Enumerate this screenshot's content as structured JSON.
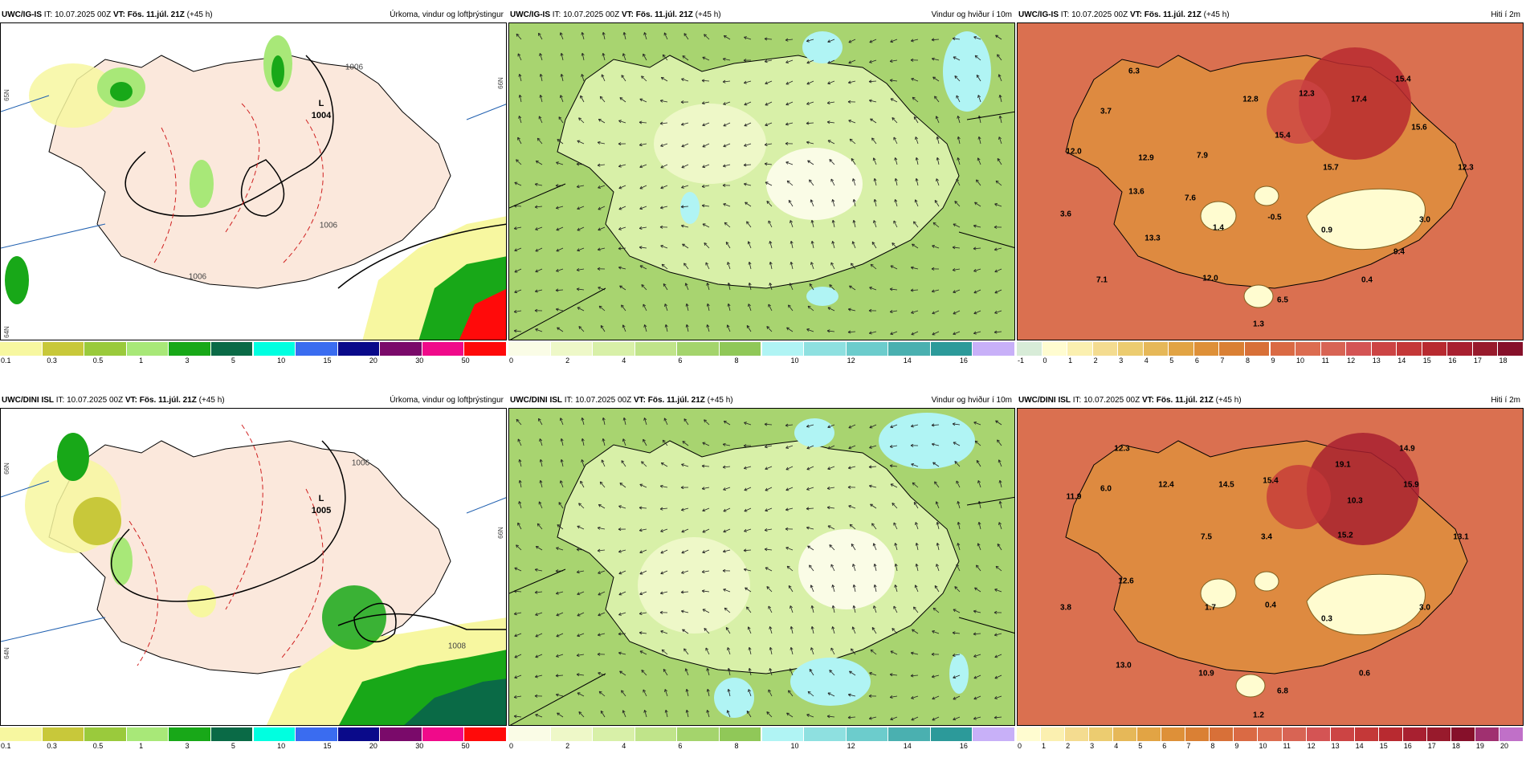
{
  "run": {
    "it_label": "IT:",
    "it_value": "10.07.2025 00Z",
    "vt_label": "VT:",
    "vt_value": "Fös. 11.júl. 21Z",
    "lead": "(+45 h)"
  },
  "rows": [
    {
      "model": "UWC/IG-IS",
      "panels": [
        {
          "kind": "precip",
          "title": "Úrkoma, vindur og loftþrýstingur",
          "pressure_label": "1004",
          "pressure_symbol": "L",
          "isobar_labels": [
            "1006",
            "1006",
            "1006"
          ],
          "lat_labels": [
            "65N",
            "66N",
            "64N"
          ]
        },
        {
          "kind": "wind",
          "title": "Vindur og hviður í 10m"
        },
        {
          "kind": "temp",
          "title": "Hiti í 2m",
          "values": [
            "6.3",
            "15.4",
            "3.7",
            "12.8",
            "12.3",
            "17.4",
            "12.0",
            "12.9",
            "7.9",
            "15.4",
            "15.6",
            "15.7",
            "12.3",
            "13.6",
            "7.6",
            "3.6",
            "1.4",
            "-0.5",
            "3.0",
            "0.9",
            "13.3",
            "9.4",
            "7.1",
            "12.0",
            "0.4",
            "6.5",
            "1.3"
          ]
        }
      ]
    },
    {
      "model": "UWC/DINI ISL",
      "panels": [
        {
          "kind": "precip",
          "title": "Úrkoma, vindur og loftþrýstingur",
          "pressure_label": "1005",
          "pressure_symbol": "L",
          "isobar_labels": [
            "1006",
            "1008"
          ],
          "lat_labels": [
            "66N",
            "64N",
            "66N"
          ]
        },
        {
          "kind": "wind",
          "title": "Vindur og hviður í 10m"
        },
        {
          "kind": "temp",
          "title": "Hiti í 2m",
          "values": [
            "12.3",
            "14.9",
            "19.1",
            "11.9",
            "6.0",
            "12.4",
            "14.5",
            "15.4",
            "15.9",
            "10.3",
            "7.5",
            "3.4",
            "15.2",
            "13.1",
            "12.6",
            "3.8",
            "1.7",
            "0.4",
            "0.3",
            "3.0",
            "13.0",
            "10.9",
            "0.6",
            "6.8",
            "1.2"
          ]
        }
      ]
    }
  ],
  "colorbars": {
    "precip": {
      "labels": [
        "0.1",
        "0.3",
        "0.5",
        "1",
        "3",
        "5",
        "10",
        "15",
        "20",
        "30",
        "50"
      ],
      "colors": [
        "#f7f7a0",
        "#c8c83a",
        "#9aca3c",
        "#a8e878",
        "#18a818",
        "#0a6a46",
        "#00ffe0",
        "#3a6cf0",
        "#0a0a8a",
        "#7a0a6a",
        "#f00a8a",
        "#ff0a0a"
      ]
    },
    "wind": {
      "labels": [
        "0",
        "2",
        "4",
        "6",
        "8",
        "10",
        "12",
        "14",
        "16"
      ],
      "colors": [
        "#fafce6",
        "#eef8c8",
        "#d8f0a8",
        "#c0e48a",
        "#a4d46c",
        "#90c858",
        "#b0f4f4",
        "#8ee0e0",
        "#6ccccc",
        "#4ab0b0",
        "#2c9a9a",
        "#c8b0f8"
      ]
    },
    "temp_top": {
      "labels": [
        "-1",
        "0",
        "1",
        "2",
        "3",
        "4",
        "5",
        "6",
        "7",
        "8",
        "9",
        "10",
        "11",
        "12",
        "13",
        "14",
        "15",
        "16",
        "17",
        "18"
      ],
      "colors": [
        "#d8ecd8",
        "#fffcd0",
        "#fbf0b0",
        "#f4dc90",
        "#eccc70",
        "#e6b858",
        "#e2a444",
        "#de9038",
        "#da8034",
        "#d87038",
        "#da6a44",
        "#dc6c50",
        "#d86454",
        "#d45454",
        "#cc4444",
        "#c43838",
        "#b82a30",
        "#a82030",
        "#981a2c",
        "#86102a"
      ]
    },
    "temp_bottom": {
      "labels": [
        "0",
        "1",
        "2",
        "3",
        "4",
        "5",
        "6",
        "7",
        "8",
        "9",
        "10",
        "11",
        "12",
        "13",
        "14",
        "15",
        "16",
        "17",
        "18",
        "19",
        "20"
      ],
      "colors": [
        "#fffcd0",
        "#fbf0b0",
        "#f4dc90",
        "#eccc70",
        "#e6b858",
        "#e2a444",
        "#de9038",
        "#da8034",
        "#d87038",
        "#da6a44",
        "#dc6c50",
        "#d86454",
        "#d45454",
        "#cc4444",
        "#c43838",
        "#b82a30",
        "#a82030",
        "#981a2c",
        "#86102a",
        "#a03070",
        "#c070c8"
      ]
    }
  },
  "colors": {
    "land_precip": "#fbe8dc",
    "sea_precip": "#ffffff",
    "wind_base": "#a8d470",
    "temp_sea": "#da7050",
    "temp_land": "#de8a40"
  }
}
